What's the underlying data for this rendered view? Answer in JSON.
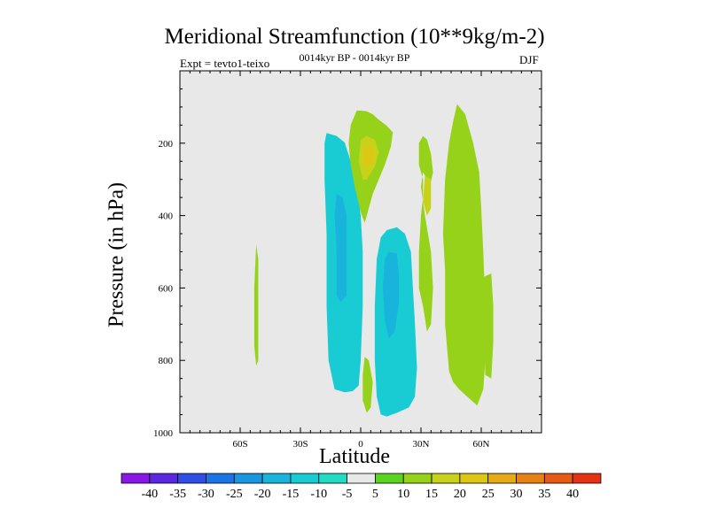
{
  "chart_data": {
    "type": "contour",
    "title": "Meridional Streamfunction (10**9kg/m-2)",
    "subtitle": "0014kyr BP - 0014kyr BP",
    "experiment_label": "Expt = tevto1-teixo",
    "season": "DJF",
    "xlabel": "Latitude",
    "ylabel": "Pressure (in hPa)",
    "xlim": [
      -90,
      90
    ],
    "ylim": [
      1000,
      0
    ],
    "x_ticks": [
      {
        "value": -60,
        "label": "60S"
      },
      {
        "value": -30,
        "label": "30S"
      },
      {
        "value": 0,
        "label": "0"
      },
      {
        "value": 30,
        "label": "30N"
      },
      {
        "value": 60,
        "label": "60N"
      }
    ],
    "y_ticks": [
      {
        "value": 200,
        "label": "200"
      },
      {
        "value": 400,
        "label": "400"
      },
      {
        "value": 600,
        "label": "600"
      },
      {
        "value": 800,
        "label": "800"
      },
      {
        "value": 1000,
        "label": "1000"
      }
    ],
    "colorbar": {
      "labels": [
        "-40",
        "-35",
        "-30",
        "-25",
        "-20",
        "-15",
        "-10",
        "-5",
        "5",
        "10",
        "15",
        "20",
        "25",
        "30",
        "35",
        "40"
      ],
      "colors": [
        "#8a17e6",
        "#5a28e0",
        "#2e4ee6",
        "#1b74e6",
        "#1896df",
        "#18b4dc",
        "#19ccd4",
        "#21dcc1",
        "#e8e8e8",
        "#5ad41e",
        "#96d21a",
        "#c8d21a",
        "#dcc814",
        "#e6aa14",
        "#e68214",
        "#e65a14",
        "#e63214"
      ]
    },
    "regions": [
      {
        "name": "sh-negative-cell",
        "level": -15,
        "points": [
          [
            -17,
            172
          ],
          [
            -12,
            180
          ],
          [
            -8,
            198
          ],
          [
            -5,
            250
          ],
          [
            -2,
            310
          ],
          [
            0,
            400
          ],
          [
            1,
            500
          ],
          [
            1,
            650
          ],
          [
            0,
            800
          ],
          [
            -1,
            870
          ],
          [
            -4,
            885
          ],
          [
            -8,
            888
          ],
          [
            -13,
            880
          ],
          [
            -16,
            800
          ],
          [
            -17,
            650
          ],
          [
            -17,
            450
          ],
          [
            -18,
            300
          ],
          [
            -18,
            200
          ]
        ]
      },
      {
        "name": "sh-core-min",
        "level": -20,
        "points": [
          [
            -12,
            340
          ],
          [
            -9,
            350
          ],
          [
            -7,
            400
          ],
          [
            -7,
            550
          ],
          [
            -7,
            620
          ],
          [
            -10,
            640
          ],
          [
            -12,
            620
          ],
          [
            -12,
            500
          ],
          [
            -13,
            400
          ]
        ]
      },
      {
        "name": "nh-negative-cell",
        "level": -15,
        "points": [
          [
            8,
            520
          ],
          [
            10,
            460
          ],
          [
            13,
            440
          ],
          [
            18,
            432
          ],
          [
            22,
            450
          ],
          [
            25,
            500
          ],
          [
            26,
            600
          ],
          [
            27,
            700
          ],
          [
            28,
            820
          ],
          [
            27,
            900
          ],
          [
            24,
            930
          ],
          [
            18,
            945
          ],
          [
            13,
            955
          ],
          [
            10,
            950
          ],
          [
            8,
            900
          ],
          [
            7,
            800
          ],
          [
            7,
            650
          ]
        ]
      },
      {
        "name": "nh-core-min",
        "level": -20,
        "points": [
          [
            12,
            520
          ],
          [
            14,
            500
          ],
          [
            18,
            505
          ],
          [
            19,
            560
          ],
          [
            19,
            640
          ],
          [
            17,
            720
          ],
          [
            14,
            740
          ],
          [
            12,
            690
          ],
          [
            11,
            600
          ]
        ]
      },
      {
        "name": "hadley-positive-lobe",
        "level": 10,
        "points": [
          [
            -2,
            110
          ],
          [
            0,
            110
          ],
          [
            3,
            112
          ],
          [
            6,
            120
          ],
          [
            9,
            135
          ],
          [
            13,
            152
          ],
          [
            16,
            170
          ],
          [
            15,
            210
          ],
          [
            12,
            260
          ],
          [
            9,
            300
          ],
          [
            6,
            340
          ],
          [
            4,
            380
          ],
          [
            2,
            420
          ],
          [
            0,
            390
          ],
          [
            -3,
            320
          ],
          [
            -5,
            260
          ],
          [
            -6,
            200
          ],
          [
            -5,
            150
          ]
        ]
      },
      {
        "name": "hadley-positive-core",
        "level": 15,
        "points": [
          [
            0,
            190
          ],
          [
            3,
            180
          ],
          [
            7,
            190
          ],
          [
            9,
            225
          ],
          [
            7,
            265
          ],
          [
            3,
            300
          ],
          [
            1,
            300
          ],
          [
            -1,
            250
          ]
        ]
      },
      {
        "name": "hadley-positive-peak",
        "level": 20,
        "points": [
          [
            2,
            210
          ],
          [
            5,
            205
          ],
          [
            7,
            225
          ],
          [
            6,
            255
          ],
          [
            3,
            265
          ],
          [
            1,
            245
          ]
        ]
      },
      {
        "name": "ferrel-positive-cell",
        "level": 10,
        "points": [
          [
            48,
            92
          ],
          [
            52,
            120
          ],
          [
            56,
            200
          ],
          [
            59,
            280
          ],
          [
            60,
            380
          ],
          [
            61,
            500
          ],
          [
            62,
            650
          ],
          [
            62,
            800
          ],
          [
            61,
            880
          ],
          [
            58,
            925
          ],
          [
            53,
            900
          ],
          [
            49,
            880
          ],
          [
            46,
            860
          ],
          [
            44,
            830
          ],
          [
            42,
            700
          ],
          [
            42,
            550
          ],
          [
            41,
            450
          ],
          [
            42,
            300
          ],
          [
            44,
            200
          ],
          [
            46,
            140
          ]
        ]
      },
      {
        "name": "ferrel-east-lobe",
        "level": 10,
        "points": [
          [
            61,
            570
          ],
          [
            65,
            560
          ],
          [
            66,
            650
          ],
          [
            66,
            750
          ],
          [
            65,
            850
          ],
          [
            62,
            840
          ]
        ]
      },
      {
        "name": "subtropical-positive-strip",
        "level": 10,
        "points": [
          [
            31,
            280
          ],
          [
            30,
            320
          ],
          [
            32,
            400
          ],
          [
            35,
            500
          ],
          [
            36,
            600
          ],
          [
            35,
            700
          ],
          [
            33,
            720
          ],
          [
            31,
            650
          ],
          [
            29,
            600
          ],
          [
            29,
            500
          ],
          [
            30,
            400
          ],
          [
            31,
            350
          ],
          [
            31,
            300
          ],
          [
            29,
            260
          ],
          [
            29,
            200
          ],
          [
            31,
            180
          ],
          [
            33,
            190
          ],
          [
            35,
            230
          ],
          [
            36,
            280
          ],
          [
            34,
            330
          ],
          [
            33,
            300
          ]
        ]
      },
      {
        "name": "subtropical-positive-core",
        "level": 15,
        "points": [
          [
            32,
            290
          ],
          [
            35,
            300
          ],
          [
            35,
            380
          ],
          [
            33,
            400
          ],
          [
            31,
            360
          ]
        ]
      },
      {
        "name": "equatorial-lower-lobe",
        "level": 10,
        "points": [
          [
            2,
            790
          ],
          [
            4,
            800
          ],
          [
            6,
            860
          ],
          [
            5,
            930
          ],
          [
            3,
            945
          ],
          [
            1,
            910
          ],
          [
            1,
            840
          ]
        ]
      },
      {
        "name": "sh-highlat-strip",
        "level": -5,
        "points": [
          [
            -64,
            0
          ],
          [
            -63,
            0
          ],
          [
            -63,
            120
          ],
          [
            -63,
            250
          ],
          [
            -64,
            500
          ],
          [
            -63,
            700
          ],
          [
            -63,
            880
          ],
          [
            -64,
            910
          ],
          [
            -65,
            700
          ],
          [
            -65,
            500
          ],
          [
            -65,
            200
          ],
          [
            -64,
            100
          ]
        ]
      },
      {
        "name": "sh-pole-strip",
        "level": -5,
        "points": [
          [
            -71,
            250
          ],
          [
            -70,
            250
          ],
          [
            -70,
            580
          ],
          [
            -71,
            580
          ]
        ]
      },
      {
        "name": "sh-pole-speck",
        "level": -5,
        "points": [
          [
            -71,
            750
          ],
          [
            -70,
            750
          ],
          [
            -70,
            785
          ],
          [
            -71,
            785
          ]
        ]
      },
      {
        "name": "sh-upper-strip",
        "level": -5,
        "points": [
          [
            -46,
            0
          ],
          [
            -45,
            0
          ],
          [
            -45,
            90
          ],
          [
            -46,
            90
          ]
        ]
      },
      {
        "name": "sh-midlat-lower-lobe",
        "level": 10,
        "points": [
          [
            -52,
            480
          ],
          [
            -51,
            520
          ],
          [
            -51,
            700
          ],
          [
            -51,
            800
          ],
          [
            -52,
            815
          ],
          [
            -53,
            760
          ],
          [
            -53,
            600
          ]
        ]
      }
    ]
  }
}
